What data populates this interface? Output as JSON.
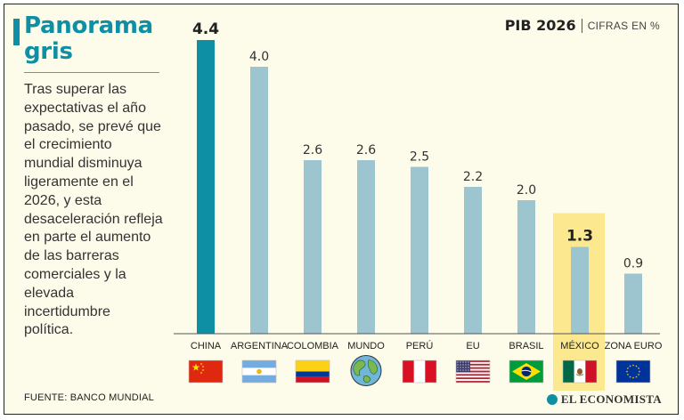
{
  "colors": {
    "accent": "#0f8fa3",
    "bar": "#9cc5d0",
    "highlight_bar": "#0f8fa3",
    "highlight_bg": "#fbe88f",
    "background": "#fdfbe9",
    "axis": "#555555"
  },
  "headline": "Panorama gris",
  "body_text": "Tras superar las expectativas el año pasado, se prevé que el crecimiento mundial disminuya ligeramente en el 2026, y esta desaceleración refleja en parte el aumento de las barreras comerciales y la elevada incertidumbre política.",
  "source": "FUENTE: BANCO MUNDIAL",
  "logo_text": "EL ECONOMISTA",
  "chart_data": {
    "type": "bar",
    "title": "PIB 2026",
    "unit_label": "CIFRAS EN %",
    "categories": [
      "CHINA",
      "ARGENTINA",
      "COLOMBIA",
      "MUNDO",
      "PERÚ",
      "EU",
      "BRASIL",
      "MÉXICO",
      "ZONA EURO"
    ],
    "values": [
      4.4,
      4.0,
      2.6,
      2.6,
      2.5,
      2.2,
      2.0,
      1.3,
      0.9
    ],
    "value_labels": [
      "4.4",
      "4.0",
      "2.6",
      "2.6",
      "2.5",
      "2.2",
      "2.0",
      "1.3",
      "0.9"
    ],
    "flags": [
      "china-flag",
      "argentina-flag",
      "colombia-flag",
      "world-globe",
      "peru-flag",
      "usa-flag",
      "brazil-flag",
      "mexico-flag",
      "eu-flag"
    ],
    "emphasized": [
      "CHINA",
      "MÉXICO"
    ],
    "highlighted": "MÉXICO",
    "ylim": [
      0,
      4.4
    ],
    "xlabel": "",
    "ylabel": "",
    "grid": false
  }
}
